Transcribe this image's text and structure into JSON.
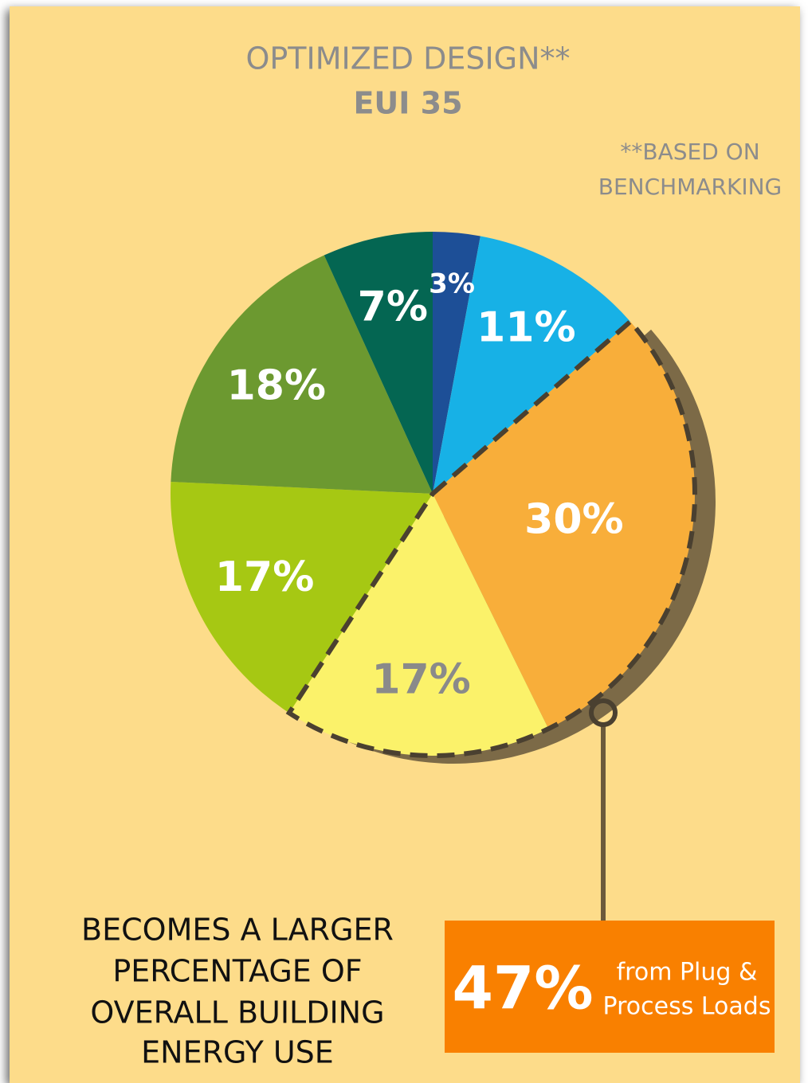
{
  "chart_data": {
    "type": "pie",
    "title": "OPTIMIZED DESIGN**",
    "subtitle": "EUI 35",
    "note": [
      "**BASED ON",
      "BENCHMARKING"
    ],
    "values": [
      3,
      11,
      30,
      17,
      17,
      18,
      7
    ],
    "value_labels": [
      "3%",
      "11%",
      "30%",
      "17%",
      "17%",
      "18%",
      "7%"
    ],
    "colors": [
      "#1d4f97",
      "#17b1e6",
      "#f8ae3a",
      "#fbf26a",
      "#a6c813",
      "#6c9930",
      "#046652"
    ],
    "label_colors": [
      "#ffffff",
      "#ffffff",
      "#ffffff",
      "#8a8a8a",
      "#ffffff",
      "#ffffff",
      "#ffffff"
    ],
    "highlight": [
      2,
      3
    ],
    "callout": {
      "value": 47,
      "value_label": "47%",
      "text": [
        "from Plug &",
        "Process Loads"
      ]
    },
    "caption": [
      "BECOMES A LARGER",
      "PERCENTAGE OF",
      "OVERALL BUILDING",
      "ENERGY USE"
    ]
  }
}
